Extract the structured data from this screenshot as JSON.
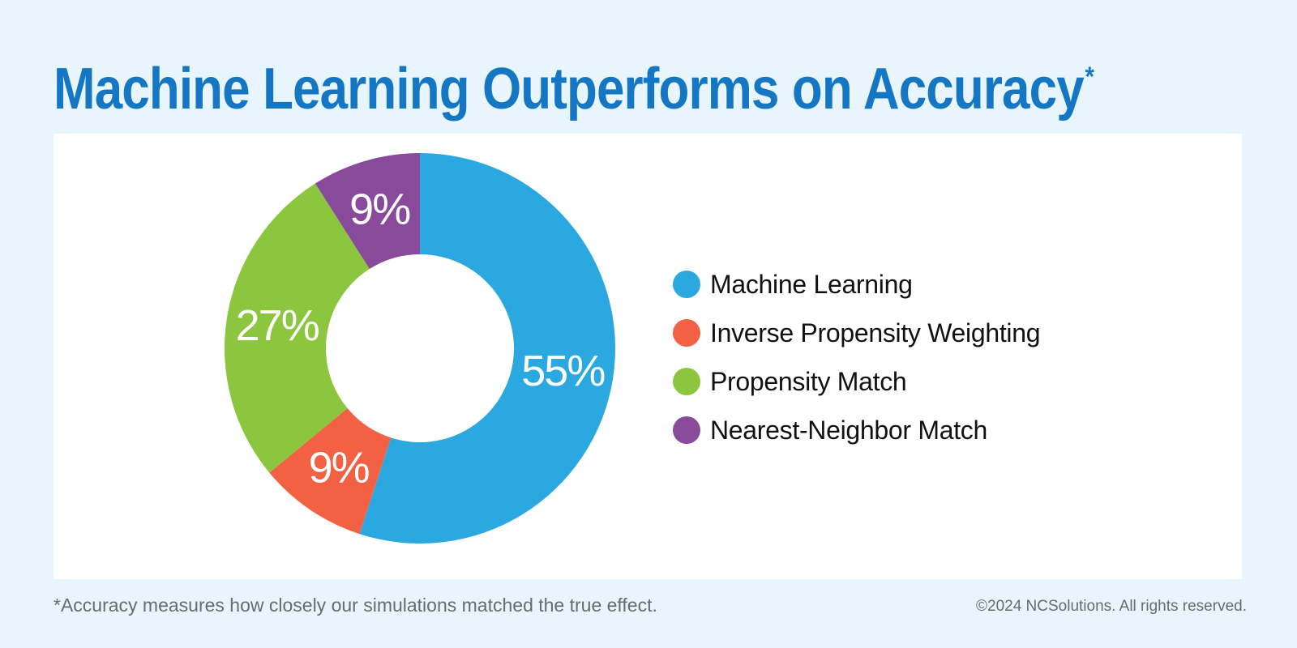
{
  "header": {
    "title": "Machine Learning Outperforms on Accuracy",
    "title_mark": "*"
  },
  "chart_data": {
    "type": "pie",
    "style": "donut",
    "title": "Machine Learning Outperforms on Accuracy*",
    "categories": [
      "Machine Learning",
      "Inverse Propensity Weighting",
      "Propensity Match",
      "Nearest-Neighbor Match"
    ],
    "values": [
      55,
      9,
      27,
      9
    ],
    "data_labels": [
      "55%",
      "9%",
      "27%",
      "9%"
    ],
    "colors": [
      "#2ca8e0",
      "#f26143",
      "#8cc63f",
      "#8a4a9c"
    ],
    "start": "12 o'clock",
    "direction": "clockwise",
    "legend_position": "right"
  },
  "footer": {
    "note": "*Accuracy measures how closely our simulations matched the true effect.",
    "copyright": "©2024 NCSolutions. All rights reserved."
  }
}
